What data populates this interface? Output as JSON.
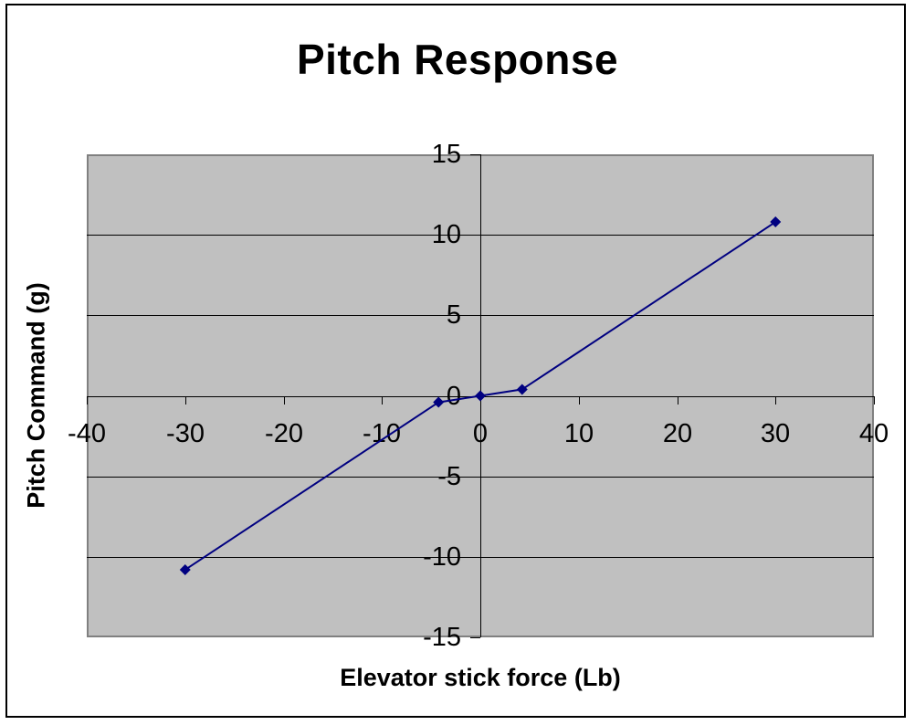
{
  "window": {
    "background": "#ffffff",
    "border_color": "#000000"
  },
  "chart_data": {
    "type": "line",
    "title": "Pitch Response",
    "xlabel": "Elevator stick force (Lb)",
    "ylabel": "Pitch Command (g)",
    "xlim": [
      -40,
      40
    ],
    "ylim": [
      -15,
      15
    ],
    "xticks": [
      -40,
      -30,
      -20,
      -10,
      0,
      10,
      20,
      30,
      40
    ],
    "yticks": [
      15,
      10,
      5,
      0,
      -5,
      -10,
      -15
    ],
    "grid": "horizontal-major",
    "legend": "none",
    "plot_background": "#c0c0c0",
    "plot_border_color": "#808080",
    "gridline_color": "#000000",
    "axis_color": "#000000",
    "series": [
      {
        "color": "#000080",
        "marker": "diamond",
        "line_width": 2,
        "x": [
          -30,
          -4.25,
          0,
          4.25,
          30
        ],
        "y": [
          -10.8,
          -0.4,
          0,
          0.4,
          10.8
        ]
      }
    ]
  }
}
